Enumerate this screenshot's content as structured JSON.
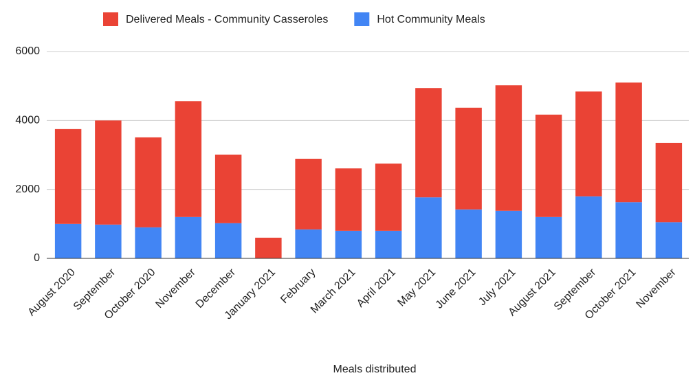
{
  "chart_data": {
    "type": "stacked_bar",
    "x_label": "Meals distributed",
    "categories": [
      "August 2020",
      "September",
      "October 2020",
      "November",
      "December",
      "January 2021",
      "February",
      "March 2021",
      "April 2021",
      "May 2021",
      "June 2021",
      "July 2021",
      "August 2021",
      "September",
      "October 2021",
      "November"
    ],
    "series": [
      {
        "name": "Delivered Meals - Community Casseroles",
        "color": "#ea4335",
        "values": [
          2750,
          3020,
          2610,
          3360,
          1990,
          600,
          2050,
          1810,
          1950,
          3170,
          2950,
          3640,
          2970,
          3040,
          3470,
          2300
        ]
      },
      {
        "name": "Hot Community Meals",
        "color": "#4285f4",
        "values": [
          1000,
          980,
          900,
          1200,
          1020,
          0,
          840,
          800,
          800,
          1770,
          1420,
          1380,
          1200,
          1800,
          1630,
          1050
        ]
      }
    ],
    "ylim": [
      0,
      6000
    ],
    "yticks": [
      0,
      2000,
      4000,
      6000
    ],
    "grid": true,
    "legend": "top"
  }
}
